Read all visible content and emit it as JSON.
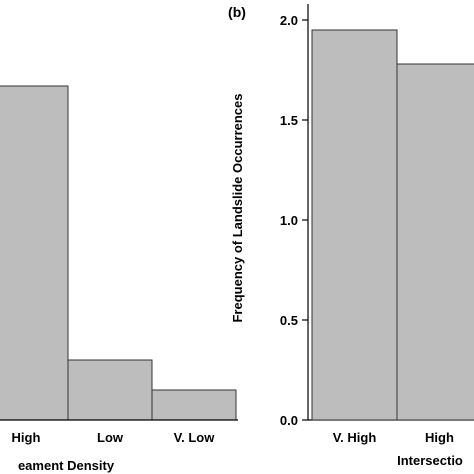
{
  "chart_data": [
    {
      "panel": "",
      "type": "bar",
      "categories": [
        "High",
        "Low",
        "V. Low"
      ],
      "values": [
        1.67,
        0.3,
        0.15
      ],
      "xlabel": "eament Density",
      "ylabel": "",
      "ylim": [
        0,
        2.0
      ],
      "colors": {
        "bar": "#bdbdbd",
        "edge": "#333333"
      },
      "grid": false
    },
    {
      "panel": "(b)",
      "type": "bar",
      "categories": [
        "V. High",
        "High"
      ],
      "values": [
        1.95,
        1.78
      ],
      "xlabel": "Intersectio",
      "ylabel": "Frequency of Landslide Occurrences",
      "ylim": [
        0,
        2.0
      ],
      "yticks": [
        "0.0",
        "0.5",
        "1.0",
        "1.5",
        "2.0"
      ],
      "colors": {
        "bar": "#bdbdbd",
        "edge": "#333333"
      },
      "grid": false
    }
  ]
}
